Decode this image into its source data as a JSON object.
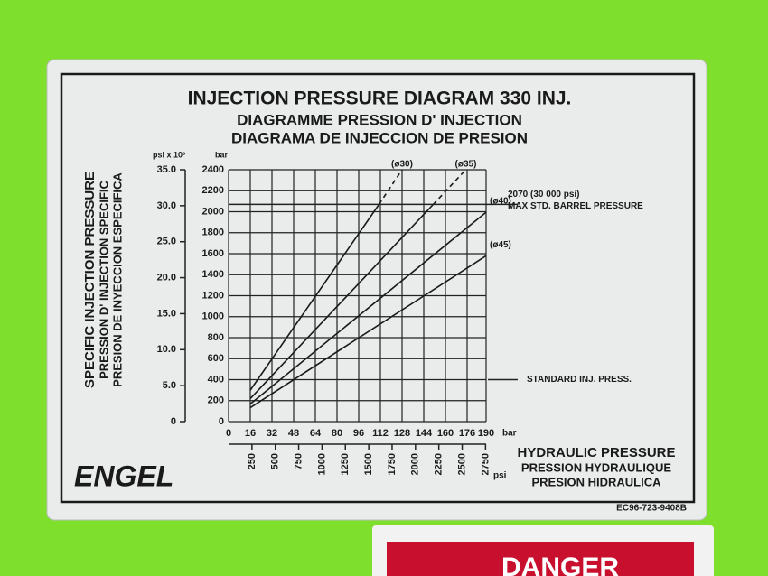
{
  "chart_data": {
    "type": "line",
    "title": "INJECTION PRESSURE DIAGRAM 330 INJ.",
    "subtitles": [
      "DIAGRAMME PRESSION D' INJECTION",
      "DIAGRAMA DE INJECCION DE PRESION"
    ],
    "y_label": [
      "SPECIFIC INJECTION PRESSURE",
      "PRESSION D' INJECTION SPECIFIC",
      "PRESION DE INYECCION ESPECIFICA"
    ],
    "x_label": [
      "HYDRAULIC PRESSURE",
      "PRESSION HYDRAULIQUE",
      "PRESION HIDRAULICA"
    ],
    "y_unit": "bar",
    "y2_unit": "psi x 10³",
    "x_unit": "bar",
    "x2_unit": "psi",
    "xlim": [
      0,
      190
    ],
    "xticks": [
      0,
      16,
      32,
      48,
      64,
      80,
      96,
      112,
      128,
      144,
      160,
      176,
      190
    ],
    "ylim": [
      0,
      2400
    ],
    "yticks": [
      0,
      200,
      400,
      600,
      800,
      1000,
      1200,
      1400,
      1600,
      1800,
      2000,
      2200,
      2400
    ],
    "y2lim": [
      0,
      35
    ],
    "y2ticks": [
      0,
      {
        "value": 5,
        "label": "5.0"
      },
      {
        "value": 10,
        "label": "10.0"
      },
      {
        "value": 15,
        "label": "15.0"
      },
      {
        "value": 20,
        "label": "20.0"
      },
      {
        "value": 25,
        "label": "25.0"
      },
      {
        "value": 30,
        "label": "30.0"
      },
      {
        "value": 35,
        "label": "35.0"
      }
    ],
    "x2lim": [
      0,
      2756
    ],
    "x2ticks": [
      250,
      500,
      750,
      1000,
      1250,
      1500,
      1750,
      2000,
      2250,
      2500,
      2750
    ],
    "grid": true,
    "series": [
      {
        "name": "(ø30)",
        "color": "#1a1a1a",
        "x": [
          16,
          111,
          128
        ],
        "values": [
          299,
          2070,
          2400
        ],
        "dashed_from_index": 1
      },
      {
        "name": "(ø35)",
        "color": "#1a1a1a",
        "x": [
          16,
          151,
          175
        ],
        "values": [
          219,
          2070,
          2400
        ],
        "dashed_from_index": 1
      },
      {
        "name": "(ø40)",
        "color": "#1a1a1a",
        "x": [
          16,
          190
        ],
        "values": [
          168,
          1995
        ]
      },
      {
        "name": "(ø45)",
        "color": "#1a1a1a",
        "x": [
          16,
          190
        ],
        "values": [
          133,
          1580
        ]
      }
    ],
    "reference_lines": [
      {
        "value": 2070,
        "label": "2070 (30 000 psi)",
        "label2": "MAX STD. BARREL PRESSURE"
      },
      {
        "value": 400,
        "label": "STANDARD INJ. PRESS."
      }
    ]
  },
  "plate": {
    "brand": "ENGEL",
    "code": "EC96-723-9408B"
  },
  "sign": {
    "text": "DANGER"
  }
}
